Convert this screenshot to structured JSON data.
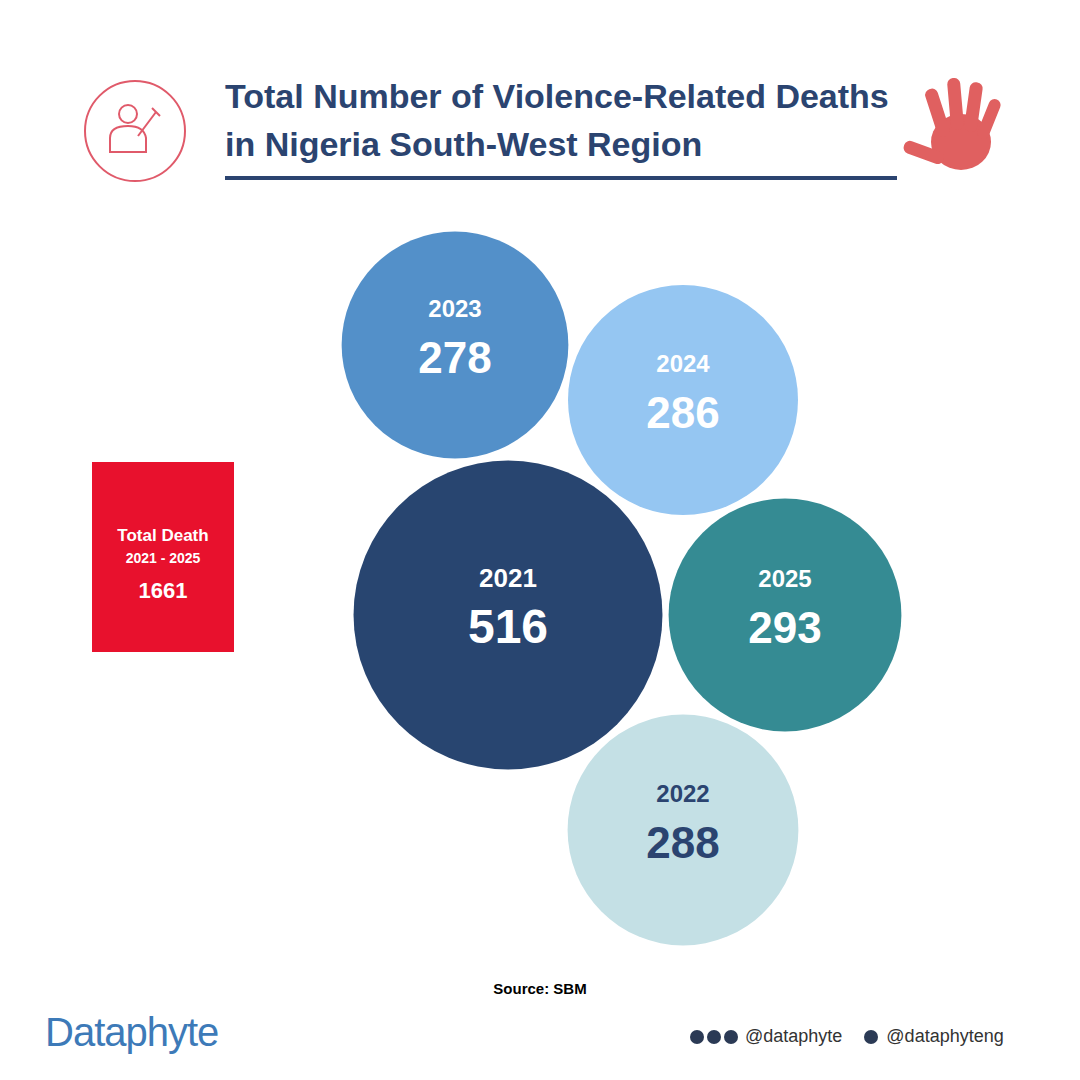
{
  "chart_data": {
    "type": "bubble",
    "title": "Total Number of Violence-Related Deaths in Nigeria South-West Region",
    "categories": [
      "2021",
      "2022",
      "2023",
      "2024",
      "2025"
    ],
    "values": [
      516,
      288,
      278,
      286,
      293
    ],
    "colors": [
      "#284570",
      "#c4e0e5",
      "#5390c9",
      "#95c6f2",
      "#358b93"
    ],
    "data_labels": true,
    "tick_labels": false,
    "total_label": "Total Death",
    "total_period": "2021 - 2025",
    "total_value": 1661,
    "source": "Source: SBM",
    "brand": "Dataphyte",
    "handles": [
      "@dataphyte",
      "@dataphyteng"
    ]
  }
}
